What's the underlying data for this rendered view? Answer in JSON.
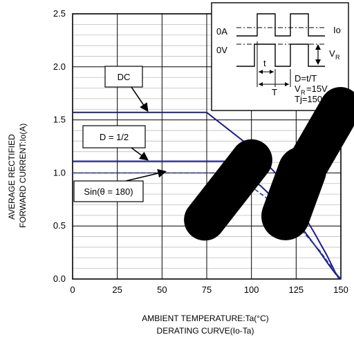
{
  "chart_data": {
    "type": "line",
    "xlabel": "AMBIENT TEMPERATURE:Ta(°C)",
    "ylabel": [
      "AVERAGE RECTIFIED",
      "FORWARD CURRENT:Io(A)"
    ],
    "caption": "DERATING CURVE(Io-Ta)",
    "xlim": [
      0,
      150
    ],
    "ylim": [
      0,
      2.5
    ],
    "xticks": [
      "0",
      "25",
      "50",
      "75",
      "100",
      "125",
      "150"
    ],
    "yticks": [
      "0.0",
      "0.5",
      "1.0",
      "1.5",
      "2.0",
      "2.5"
    ],
    "grid": true,
    "series": [
      {
        "name": "DC",
        "style": "solid",
        "color": "#1c1c8c",
        "points": [
          [
            0,
            1.57
          ],
          [
            75,
            1.57
          ],
          [
            100,
            1.24
          ],
          [
            115,
            0.97
          ],
          [
            125,
            0.72
          ],
          [
            135,
            0.44
          ],
          [
            142,
            0.23
          ],
          [
            147,
            0.06
          ],
          [
            149,
            0.0
          ]
        ]
      },
      {
        "name": "D = 1/2",
        "style": "solid",
        "color": "#1c1c8c",
        "points": [
          [
            0,
            1.11
          ],
          [
            86,
            1.11
          ],
          [
            105,
            0.88
          ],
          [
            120,
            0.64
          ],
          [
            130,
            0.44
          ],
          [
            138,
            0.26
          ],
          [
            143,
            0.14
          ],
          [
            147,
            0.05
          ],
          [
            150,
            0.0
          ]
        ]
      },
      {
        "name": "Sin(θ = 180)",
        "style": "dashed",
        "color": "#2a3a9a",
        "points": [
          [
            0,
            1.0
          ],
          [
            85,
            1.0
          ],
          [
            100,
            0.87
          ],
          [
            115,
            0.68
          ],
          [
            128,
            0.46
          ],
          [
            138,
            0.27
          ],
          [
            144,
            0.13
          ],
          [
            148,
            0.04
          ],
          [
            150,
            0.0
          ]
        ]
      }
    ],
    "annotations": [
      {
        "label": "DC",
        "series": "DC"
      },
      {
        "label": "D = 1/2",
        "series": "D = 1/2"
      },
      {
        "label": "Sin(θ = 180)",
        "series": "Sin(θ = 180)"
      }
    ],
    "inset": {
      "labels": {
        "current_zero": "0A",
        "voltage_zero": "0V",
        "io": "Io",
        "vr_main": "V",
        "vr_sub": "R",
        "t": "t",
        "T": "T",
        "duty": "D=t/T",
        "vr_value_main": "V",
        "vr_value_sub": "R",
        "vr_value_rest": "=15V",
        "tj": "Tj=150°C"
      }
    }
  }
}
